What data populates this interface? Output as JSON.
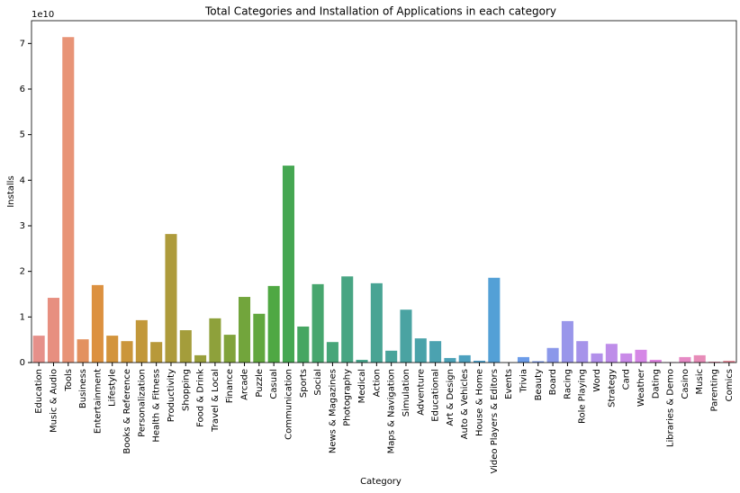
{
  "chart_data": {
    "type": "bar",
    "title": "Total Categories and Installation of Applications in each category",
    "xlabel": "Category",
    "ylabel": "Installs",
    "y_offset_label": "1e10",
    "categories": [
      "Education",
      "Music & Audio",
      "Tools",
      "Business",
      "Entertainment",
      "Lifestyle",
      "Books & Reference",
      "Personalization",
      "Health & Fitness",
      "Productivity",
      "Shopping",
      "Food & Drink",
      "Travel & Local",
      "Finance",
      "Arcade",
      "Puzzle",
      "Casual",
      "Communication",
      "Sports",
      "Social",
      "News & Magazines",
      "Photography",
      "Medical",
      "Action",
      "Maps & Navigation",
      "Simulation",
      "Adventure",
      "Educational",
      "Art & Design",
      "Auto & Vehicles",
      "House & Home",
      "Video Players & Editors",
      "Events",
      "Trivia",
      "Beauty",
      "Board",
      "Racing",
      "Role Playing",
      "Word",
      "Strategy",
      "Card",
      "Weather",
      "Dating",
      "Libraries & Demo",
      "Casino",
      "Music",
      "Parenting",
      "Comics"
    ],
    "values": [
      0.59,
      1.42,
      7.14,
      0.51,
      1.7,
      0.59,
      0.47,
      0.93,
      0.45,
      2.82,
      0.71,
      0.16,
      0.97,
      0.61,
      1.44,
      1.07,
      1.68,
      4.32,
      0.79,
      1.72,
      0.45,
      1.89,
      0.06,
      1.74,
      0.26,
      1.16,
      0.53,
      0.47,
      0.1,
      0.16,
      0.04,
      1.86,
      0.002,
      0.12,
      0.03,
      0.32,
      0.91,
      0.47,
      0.2,
      0.41,
      0.2,
      0.28,
      0.06,
      0.01,
      0.12,
      0.16,
      0.02,
      0.04
    ],
    "colors": [
      "#e6908a",
      "#e78f80",
      "#e89477",
      "#e3915f",
      "#dc9140",
      "#d3943c",
      "#cb963b",
      "#c2983a",
      "#b8993a",
      "#ae9b3b",
      "#a49d3b",
      "#999f3b",
      "#8ea13b",
      "#81a33b",
      "#72a53c",
      "#62a73e",
      "#4fa843",
      "#45a752",
      "#46a662",
      "#47a66e",
      "#47a679",
      "#48a583",
      "#48a58c",
      "#49a494",
      "#49a49b",
      "#4aa3a2",
      "#4aa3a9",
      "#4ba2b0",
      "#4ca2b7",
      "#4da1bf",
      "#4fa0c9",
      "#53a0d6",
      "#5d9ee4",
      "#6c9ce9",
      "#7b9aea",
      "#8b98ea",
      "#9996ea",
      "#a693ea",
      "#b290ea",
      "#be8de9",
      "#c98ae8",
      "#d587e6",
      "#df85e0",
      "#e487d3",
      "#e68ac5",
      "#e78cb8",
      "#e88eab",
      "#e8909e"
    ],
    "ylim": [
      0,
      7.5
    ],
    "yticks": [
      0,
      1,
      2,
      3,
      4,
      5,
      6,
      7
    ],
    "grid": false
  }
}
